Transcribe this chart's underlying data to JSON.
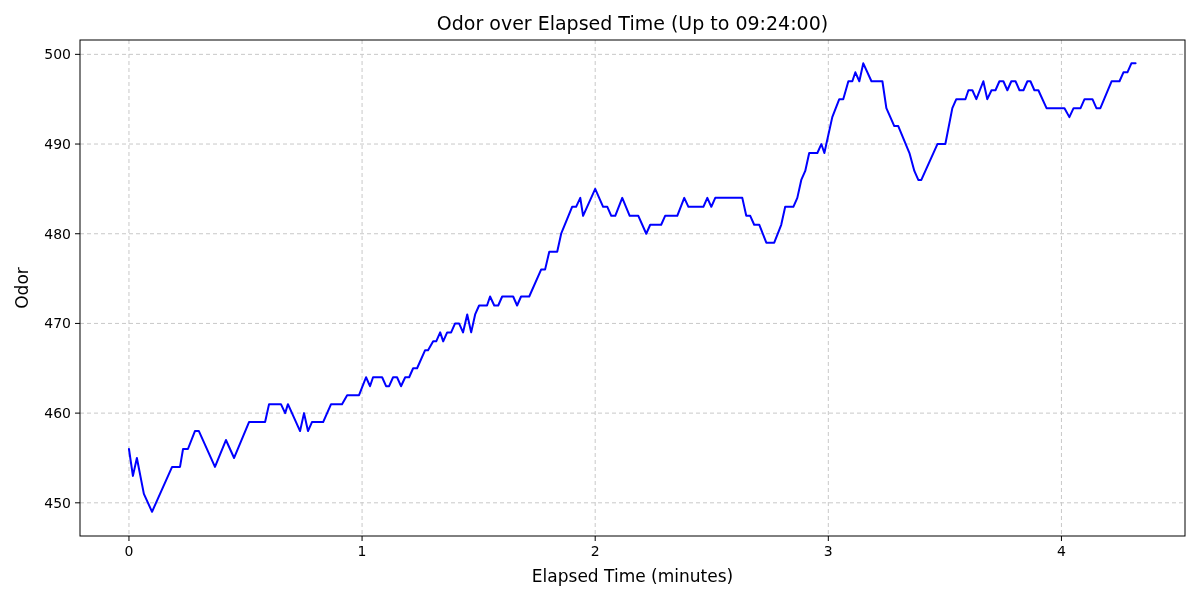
{
  "chart_data": {
    "type": "line",
    "title": "Odor over Elapsed Time (Up to 09:24:00)",
    "xlabel": "Elapsed Time (minutes)",
    "ylabel": "Odor",
    "xlim": [
      -0.21,
      4.53
    ],
    "ylim": [
      446.3,
      501.6
    ],
    "xticks": [
      0,
      1,
      2,
      3,
      4
    ],
    "yticks": [
      450,
      460,
      470,
      480,
      490,
      500
    ],
    "grid": true,
    "line_style": "solid",
    "series": [
      {
        "color": "#0000ff",
        "x": [
          0,
          0.017,
          0.034,
          0.064,
          0.099,
          0.185,
          0.219,
          0.232,
          0.253,
          0.283,
          0.3,
          0.369,
          0.416,
          0.451,
          0.515,
          0.584,
          0.601,
          0.652,
          0.67,
          0.682,
          0.734,
          0.751,
          0.768,
          0.785,
          0.833,
          0.867,
          0.914,
          0.936,
          0.987,
          1.017,
          1.034,
          1.047,
          1.086,
          1.103,
          1.116,
          1.133,
          1.15,
          1.167,
          1.185,
          1.202,
          1.219,
          1.236,
          1.27,
          1.283,
          1.305,
          1.318,
          1.335,
          1.348,
          1.365,
          1.382,
          1.399,
          1.416,
          1.433,
          1.451,
          1.468,
          1.485,
          1.502,
          1.536,
          1.549,
          1.567,
          1.584,
          1.601,
          1.648,
          1.665,
          1.682,
          1.717,
          1.768,
          1.785,
          1.803,
          1.837,
          1.854,
          1.901,
          1.918,
          1.936,
          1.948,
          2,
          2.034,
          2.052,
          2.069,
          2.086,
          2.116,
          2.148,
          2.185,
          2.219,
          2.236,
          2.283,
          2.3,
          2.352,
          2.382,
          2.4,
          2.464,
          2.481,
          2.498,
          2.515,
          2.631,
          2.648,
          2.665,
          2.682,
          2.704,
          2.734,
          2.768,
          2.798,
          2.815,
          2.85,
          2.867,
          2.884,
          2.901,
          2.918,
          2.953,
          2.97,
          2.983,
          3.017,
          3.047,
          3.064,
          3.086,
          3.103,
          3.116,
          3.133,
          3.15,
          3.185,
          3.232,
          3.249,
          3.283,
          3.3,
          3.348,
          3.369,
          3.386,
          3.399,
          3.468,
          3.502,
          3.532,
          3.549,
          3.588,
          3.601,
          3.618,
          3.635,
          3.665,
          3.682,
          3.7,
          3.717,
          3.734,
          3.751,
          3.768,
          3.785,
          3.803,
          3.82,
          3.837,
          3.854,
          3.867,
          3.884,
          3.901,
          3.936,
          4.013,
          4.034,
          4.052,
          4.082,
          4.099,
          4.133,
          4.15,
          4.167,
          4.215,
          4.249,
          4.266,
          4.283,
          4.3,
          4.318
        ],
        "values": [
          456,
          453,
          455,
          451,
          449,
          454,
          454,
          456,
          456,
          458,
          458,
          454,
          457,
          455,
          459,
          459,
          461,
          461,
          460,
          461,
          458,
          460,
          458,
          459,
          459,
          461,
          461,
          462,
          462,
          464,
          463,
          464,
          464,
          463,
          463,
          464,
          464,
          463,
          464,
          464,
          465,
          465,
          467,
          467,
          468,
          468,
          469,
          468,
          469,
          469,
          470,
          470,
          469,
          471,
          469,
          471,
          472,
          472,
          473,
          472,
          472,
          473,
          473,
          472,
          473,
          473,
          476,
          476,
          478,
          478,
          480,
          483,
          483,
          484,
          482,
          485,
          483,
          483,
          482,
          482,
          484,
          482,
          482,
          480,
          481,
          481,
          482,
          482,
          484,
          483,
          483,
          484,
          483,
          484,
          484,
          482,
          482,
          481,
          481,
          479,
          479,
          481,
          483,
          483,
          484,
          486,
          487,
          489,
          489,
          490,
          489,
          493,
          495,
          495,
          497,
          497,
          498,
          497,
          499,
          497,
          497,
          494,
          492,
          492,
          489,
          487,
          486,
          486,
          490,
          490,
          494,
          495,
          495,
          496,
          496,
          495,
          497,
          495,
          496,
          496,
          497,
          497,
          496,
          497,
          497,
          496,
          496,
          497,
          497,
          496,
          496,
          494,
          494,
          493,
          494,
          494,
          495,
          495,
          494,
          494,
          497,
          497,
          498,
          498,
          499,
          499
        ]
      }
    ]
  }
}
